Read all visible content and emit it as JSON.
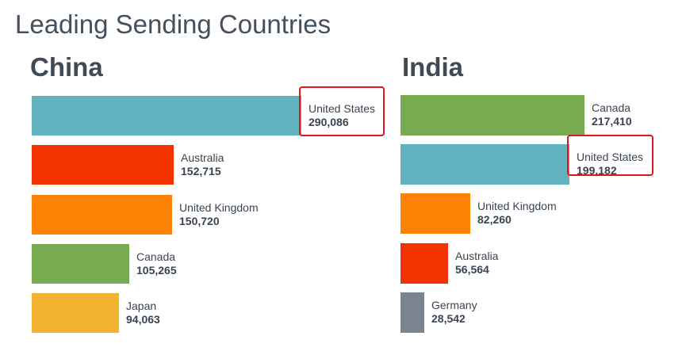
{
  "page": {
    "title": "Leading Sending Countries"
  },
  "chart_data": [
    {
      "type": "bar",
      "orientation": "horizontal",
      "title": "China",
      "categories": [
        "United States",
        "Australia",
        "United Kingdom",
        "Canada",
        "Japan"
      ],
      "values": [
        290086,
        152715,
        150720,
        105265,
        94063
      ],
      "value_labels": [
        "290,086",
        "152,715",
        "150,720",
        "105,265",
        "94,063"
      ],
      "colors": [
        "#62b1bf",
        "#f23300",
        "#fc8105",
        "#76ab52",
        "#f3b330"
      ],
      "highlighted": "United States",
      "grid": false,
      "legend": "none"
    },
    {
      "type": "bar",
      "orientation": "horizontal",
      "title": "India",
      "categories": [
        "Canada",
        "United States",
        "United Kingdom",
        "Australia",
        "Germany"
      ],
      "values": [
        217410,
        199182,
        82260,
        56564,
        28542
      ],
      "value_labels": [
        "217,410",
        "199,182",
        "82,260",
        "56,564",
        "28,542"
      ],
      "colors": [
        "#76ab52",
        "#62b1bf",
        "#fc8105",
        "#f23300",
        "#7a8490"
      ],
      "highlighted": "United States",
      "grid": false,
      "legend": "none"
    }
  ],
  "colors": {
    "highlight_border": "#e0161d",
    "text": "#3f4a55"
  }
}
